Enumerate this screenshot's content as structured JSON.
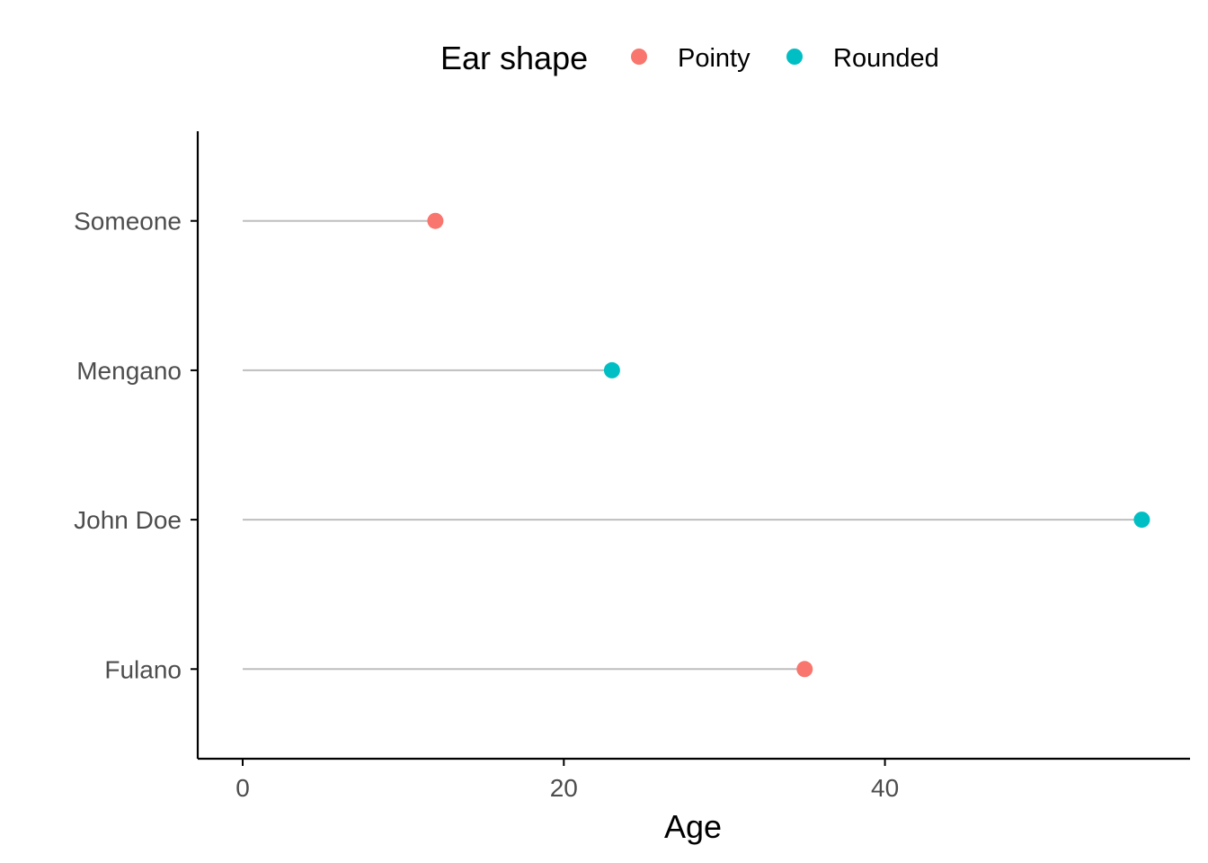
{
  "chart_data": {
    "type": "lollipop",
    "orientation": "horizontal",
    "categories": [
      "Fulano",
      "John Doe",
      "Mengano",
      "Someone"
    ],
    "values": [
      35,
      56,
      23,
      12
    ],
    "groups": [
      "Pointy",
      "Rounded",
      "Rounded",
      "Pointy"
    ],
    "xlabel": "Age",
    "ylabel": "",
    "xticks": [
      0,
      20,
      40
    ],
    "xlim": [
      -2.8,
      59
    ],
    "legend": {
      "title": "Ear shape",
      "position": "top",
      "entries": [
        {
          "label": "Pointy",
          "color": "#F8766D"
        },
        {
          "label": "Rounded",
          "color": "#00BFC4"
        }
      ]
    },
    "segment_color": "#bebebe",
    "axis_color": "#000000",
    "grid": false
  }
}
